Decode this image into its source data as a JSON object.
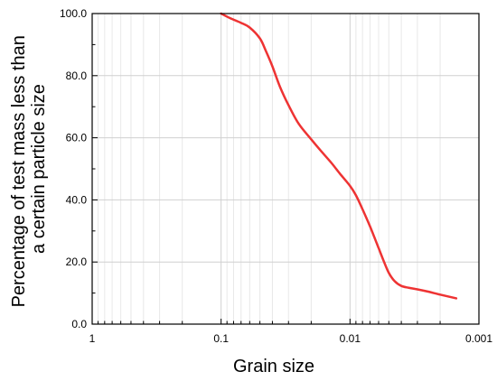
{
  "chart_data": {
    "type": "line",
    "title": "",
    "xlabel": "Grain size",
    "ylabel_lines": [
      "Percentage of test mass less than",
      "a certain particle size"
    ],
    "x_scale": "log",
    "x_reversed": true,
    "xlim": [
      1,
      0.001
    ],
    "ylim": [
      0,
      100
    ],
    "x_ticks": [
      1,
      0.1,
      0.01,
      0.001
    ],
    "x_tick_labels": [
      "1",
      "0.1",
      "0.01",
      "0.001"
    ],
    "y_ticks": [
      0,
      20,
      40,
      60,
      80,
      100
    ],
    "y_tick_labels": [
      "0.0",
      "20.0",
      "40.0",
      "60.0",
      "80.0",
      "100.0"
    ],
    "grid": true,
    "series": [
      {
        "color": "#ee3333",
        "x": [
          0.1,
          0.085,
          0.07,
          0.06,
          0.05,
          0.045,
          0.04,
          0.035,
          0.03,
          0.025,
          0.02,
          0.017,
          0.014,
          0.012,
          0.01,
          0.009,
          0.008,
          0.007,
          0.006,
          0.0055,
          0.005,
          0.0045,
          0.004,
          0.0035,
          0.003,
          0.0025,
          0.002,
          0.0015
        ],
        "y": [
          100,
          98.5,
          97,
          95.5,
          92,
          88,
          83,
          76.5,
          70.5,
          64.5,
          59.5,
          56,
          52,
          48.5,
          44.5,
          41.5,
          37,
          31.5,
          24.5,
          20.5,
          16.5,
          13.8,
          12.3,
          11.7,
          11.2,
          10.5,
          9.5,
          8.3
        ]
      }
    ]
  }
}
